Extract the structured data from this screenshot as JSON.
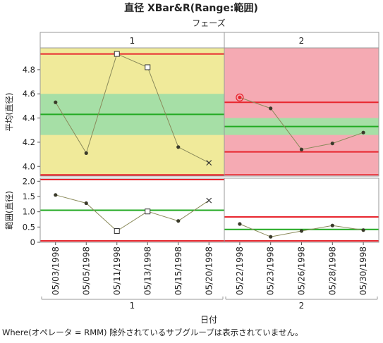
{
  "title": "直径  XBar&R(Range:範囲)",
  "phase_axis_label": "フェーズ",
  "footer_note": "Where(オペレータ = RMM) 除外されているサブグループは表示されていません。",
  "colors": {
    "yellow_zone": "#f0ea9a",
    "green_zone": "#a6dfa6",
    "red_zone": "#f5aab3",
    "limit_line": "#e8262e",
    "center_line": "#22aa22",
    "data_line": "#8a8a5a",
    "marker": "#3a3a2a",
    "frame": "#999999"
  },
  "chart_data": [
    {
      "type": "line",
      "title": "",
      "ylabel": "平均(直径)",
      "xlabel": "日付",
      "ylim": [
        3.92,
        4.98
      ],
      "yticks": [
        "4.0",
        "4.2",
        "4.4",
        "4.6",
        "4.8"
      ],
      "phases": [
        {
          "name": "1",
          "categories": [
            "05/03/1998",
            "05/05/1998",
            "05/11/1998",
            "05/13/1998",
            "05/15/1998",
            "05/20/1998"
          ],
          "values": [
            4.53,
            4.11,
            4.93,
            4.82,
            4.16,
            4.03
          ],
          "markers": [
            "dot",
            "dot",
            "square",
            "square",
            "dot",
            "x"
          ],
          "center": 4.43,
          "ucl": 4.93,
          "lcl": 3.92,
          "green_zone": [
            4.26,
            4.6
          ],
          "background": "yellow"
        },
        {
          "name": "2",
          "categories": [
            "05/22/1998",
            "05/23/1998",
            "05/26/1998",
            "05/28/1998",
            "05/30/1998"
          ],
          "values": [
            4.57,
            4.48,
            4.14,
            4.19,
            4.28
          ],
          "markers": [
            "circled",
            "dot",
            "dot",
            "dot",
            "dot"
          ],
          "center": 4.33,
          "ucl": 4.53,
          "lcl": 4.12,
          "green_zone": [
            4.26,
            4.4
          ],
          "background": "red"
        }
      ]
    },
    {
      "type": "line",
      "title": "",
      "ylabel": "範囲(直径)",
      "xlabel": "日付",
      "ylim": [
        0,
        2.1
      ],
      "yticks": [
        "0",
        "0.5",
        "1.0",
        "1.5",
        "2.0"
      ],
      "phases": [
        {
          "name": "1",
          "categories": [
            "05/03/1998",
            "05/05/1998",
            "05/11/1998",
            "05/13/1998",
            "05/15/1998",
            "05/20/1998"
          ],
          "values": [
            1.55,
            1.28,
            0.37,
            1.01,
            0.7,
            1.37
          ],
          "markers": [
            "dot",
            "dot",
            "square",
            "square",
            "dot",
            "x"
          ],
          "center": 1.05,
          "ucl": 2.15,
          "lcl": 0
        },
        {
          "name": "2",
          "categories": [
            "05/22/1998",
            "05/23/1998",
            "05/26/1998",
            "05/28/1998",
            "05/30/1998"
          ],
          "values": [
            0.6,
            0.18,
            0.37,
            0.55,
            0.4
          ],
          "markers": [
            "dot",
            "dot",
            "dot",
            "dot",
            "dot"
          ],
          "center": 0.42,
          "ucl": 0.83,
          "lcl": 0
        }
      ]
    }
  ]
}
